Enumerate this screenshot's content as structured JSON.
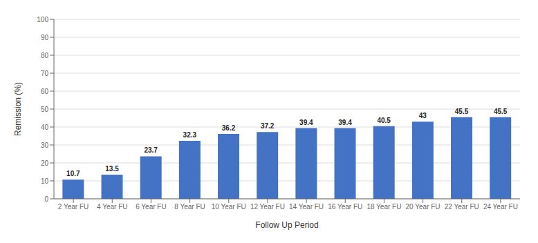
{
  "chart_data": {
    "type": "bar",
    "categories": [
      "2 Year FU",
      "4 Year FU",
      "6 Year FU",
      "8 Year FU",
      "10 Year FU",
      "12 Year FU",
      "14 Year FU",
      "16 Year FU",
      "18 Year FU",
      "20 Year FU",
      "22 Year FU",
      "24 Year FU"
    ],
    "values": [
      10.7,
      13.5,
      23.7,
      32.3,
      36.2,
      37.2,
      39.4,
      39.4,
      40.5,
      43,
      45.5,
      45.5
    ],
    "color": "#4472C4",
    "xlabel": "Follow Up Period",
    "ylabel": "Remission (%)",
    "ylim": [
      0,
      100
    ],
    "yticks": [
      0,
      10,
      20,
      30,
      40,
      50,
      60,
      70,
      80,
      90,
      100
    ],
    "grid": true,
    "data_labels": true
  }
}
